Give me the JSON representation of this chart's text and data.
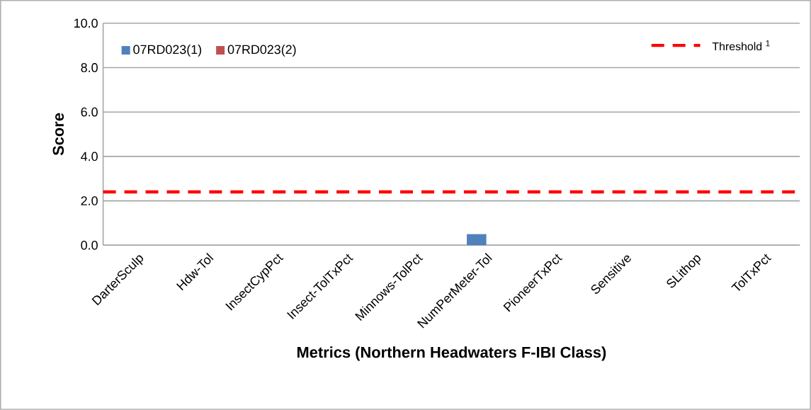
{
  "chart_data": {
    "type": "bar",
    "xlabel": "Metrics (Northern Headwaters F-IBI Class)",
    "ylabel": "Score",
    "categories": [
      "DarterSculp",
      "Hdw-Tol",
      "InsectCypPct",
      "Insect-TolTxPct",
      "Minnows-TolPct",
      "NumPerMeter-Tol",
      "PioneerTxPct",
      "Sensitive",
      "SLithop",
      "TolTxPct"
    ],
    "series": [
      {
        "name": "07RD023(1)",
        "color": "#4f81bd",
        "values": [
          0,
          0,
          0,
          0,
          0,
          0.5,
          0,
          0,
          0,
          0
        ]
      },
      {
        "name": "07RD023(2)",
        "color": "#c0504d",
        "values": [
          0,
          0,
          0,
          0,
          0,
          0,
          0,
          0,
          0,
          0
        ]
      }
    ],
    "ylim": [
      0,
      10
    ],
    "yticks": [
      {
        "value": 0,
        "label": "0.0"
      },
      {
        "value": 2,
        "label": "2.0"
      },
      {
        "value": 4,
        "label": "4.0"
      },
      {
        "value": 6,
        "label": "6.0"
      },
      {
        "value": 8,
        "label": "8.0"
      },
      {
        "value": 10,
        "label": "10.0"
      }
    ],
    "ref_lines": [
      {
        "axis": "y",
        "value": 2.4,
        "label": "Threshold $^{1}$",
        "color": "#ff0000",
        "line_style": "dashed"
      }
    ],
    "grid": "y",
    "legend": "top left"
  }
}
